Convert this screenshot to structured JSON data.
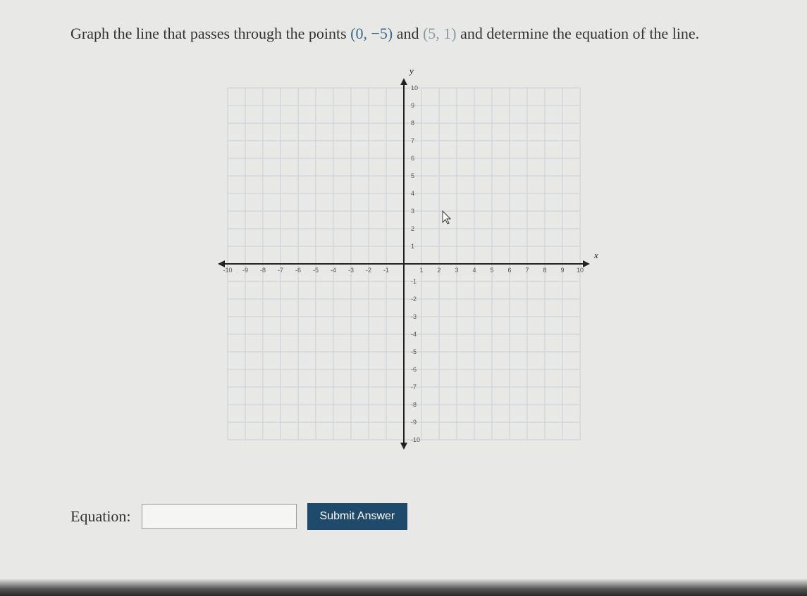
{
  "question": {
    "prefix": "Graph the line that passes through the points ",
    "point1": "(0, −5)",
    "mid": " and ",
    "point2": "(5, 1)",
    "suffix": " and determine the equation of the line."
  },
  "graph": {
    "xlim": [
      -10,
      10
    ],
    "ylim": [
      -10,
      10
    ],
    "xtick_step": 1,
    "ytick_step": 1,
    "grid_color": "#c8d0d8",
    "axis_color": "#222222",
    "tick_label_color": "#555555",
    "background": "transparent",
    "x_axis_label": "x",
    "y_axis_label": "y",
    "tick_labels_x": [
      "-10",
      "-9",
      "-8",
      "-7",
      "-6",
      "-5",
      "-4",
      "-3",
      "-2",
      "-1",
      "",
      "1",
      "2",
      "3",
      "4",
      "5",
      "6",
      "7",
      "8",
      "9",
      "10"
    ],
    "tick_labels_y": [
      "-10",
      "-9",
      "-8",
      "-7",
      "-6",
      "-5",
      "-4",
      "-3",
      "-2",
      "-1",
      "",
      "1",
      "2",
      "3",
      "4",
      "5",
      "6",
      "7",
      "8",
      "9",
      "10"
    ]
  },
  "answer": {
    "label": "Equation:",
    "value": "",
    "submit_label": "Submit Answer"
  },
  "cursor_pos": {
    "grid_x": 2.2,
    "grid_y": 3
  }
}
